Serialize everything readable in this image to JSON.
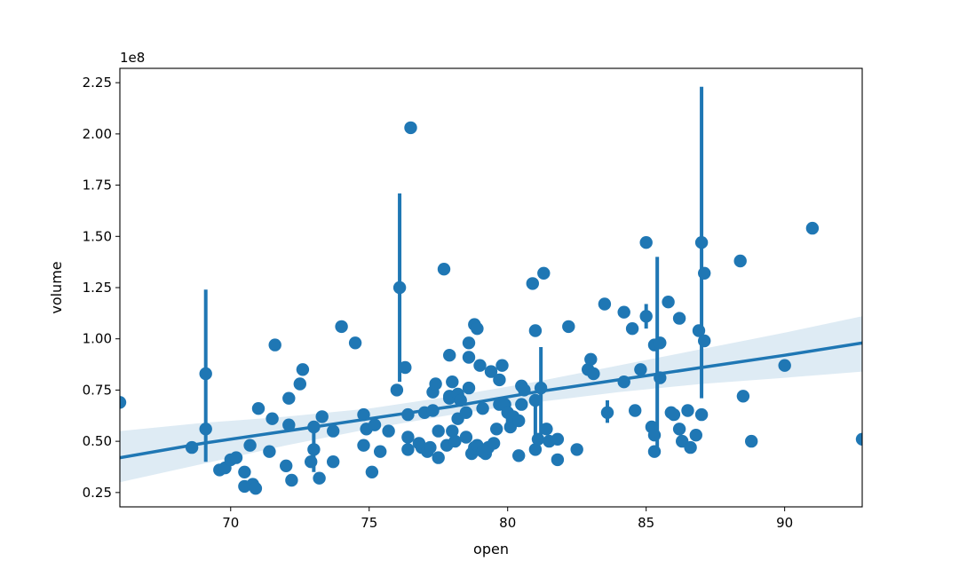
{
  "chart_data": {
    "type": "scatter",
    "title": "",
    "xlabel": "open",
    "ylabel": "volume",
    "y_offset_text": "1e8",
    "xlim": [
      66.0,
      92.8
    ],
    "ylim": [
      0.18,
      2.32
    ],
    "x_ticks": [
      70,
      75,
      80,
      85,
      90
    ],
    "y_ticks": [
      0.25,
      0.5,
      0.75,
      1.0,
      1.25,
      1.5,
      1.75,
      2.0,
      2.25
    ],
    "x_tick_labels": [
      "70",
      "75",
      "80",
      "85",
      "90"
    ],
    "y_tick_labels": [
      "0.25",
      "0.50",
      "0.75",
      "1.00",
      "1.25",
      "1.50",
      "1.75",
      "2.00",
      "2.25"
    ],
    "grid": false,
    "colors": {
      "points": "#1f77b4",
      "line": "#1f77b4",
      "band": "#1f77b4"
    },
    "points": [
      [
        66.0,
        0.69
      ],
      [
        68.6,
        0.47
      ],
      [
        69.1,
        0.56
      ],
      [
        69.1,
        0.83
      ],
      [
        69.6,
        0.36
      ],
      [
        69.8,
        0.37
      ],
      [
        70.0,
        0.41
      ],
      [
        70.2,
        0.42
      ],
      [
        70.5,
        0.35
      ],
      [
        70.5,
        0.28
      ],
      [
        70.7,
        0.48
      ],
      [
        70.8,
        0.29
      ],
      [
        70.9,
        0.27
      ],
      [
        71.0,
        0.66
      ],
      [
        71.4,
        0.45
      ],
      [
        71.5,
        0.61
      ],
      [
        71.6,
        0.97
      ],
      [
        72.0,
        0.38
      ],
      [
        72.1,
        0.58
      ],
      [
        72.1,
        0.71
      ],
      [
        72.2,
        0.31
      ],
      [
        72.5,
        0.78
      ],
      [
        72.6,
        0.85
      ],
      [
        72.9,
        0.4
      ],
      [
        73.0,
        0.46
      ],
      [
        73.0,
        0.57
      ],
      [
        73.2,
        0.32
      ],
      [
        73.3,
        0.62
      ],
      [
        73.7,
        0.55
      ],
      [
        73.7,
        0.4
      ],
      [
        74.0,
        1.06
      ],
      [
        74.5,
        0.98
      ],
      [
        74.8,
        0.63
      ],
      [
        74.8,
        0.48
      ],
      [
        74.9,
        0.56
      ],
      [
        75.1,
        0.35
      ],
      [
        75.2,
        0.58
      ],
      [
        75.4,
        0.45
      ],
      [
        75.7,
        0.55
      ],
      [
        76.0,
        0.75
      ],
      [
        76.1,
        1.25
      ],
      [
        76.3,
        0.86
      ],
      [
        76.4,
        0.52
      ],
      [
        76.4,
        0.46
      ],
      [
        76.4,
        0.63
      ],
      [
        76.5,
        2.03
      ],
      [
        76.8,
        0.49
      ],
      [
        76.9,
        0.47
      ],
      [
        77.0,
        0.64
      ],
      [
        77.1,
        0.45
      ],
      [
        77.2,
        0.47
      ],
      [
        77.3,
        0.74
      ],
      [
        77.3,
        0.65
      ],
      [
        77.4,
        0.78
      ],
      [
        77.5,
        0.42
      ],
      [
        77.5,
        0.55
      ],
      [
        77.7,
        1.34
      ],
      [
        77.8,
        0.48
      ],
      [
        77.9,
        0.92
      ],
      [
        77.9,
        0.71
      ],
      [
        77.9,
        0.72
      ],
      [
        78.0,
        0.79
      ],
      [
        78.0,
        0.55
      ],
      [
        78.1,
        0.5
      ],
      [
        78.2,
        0.61
      ],
      [
        78.2,
        0.73
      ],
      [
        78.3,
        0.7
      ],
      [
        78.5,
        0.64
      ],
      [
        78.5,
        0.52
      ],
      [
        78.6,
        0.91
      ],
      [
        78.6,
        0.98
      ],
      [
        78.6,
        0.76
      ],
      [
        78.7,
        0.44
      ],
      [
        78.8,
        1.07
      ],
      [
        78.8,
        0.47
      ],
      [
        78.9,
        1.05
      ],
      [
        78.9,
        0.48
      ],
      [
        79.0,
        0.87
      ],
      [
        79.1,
        0.66
      ],
      [
        79.1,
        0.45
      ],
      [
        79.2,
        0.44
      ],
      [
        79.3,
        0.47
      ],
      [
        79.4,
        0.84
      ],
      [
        79.5,
        0.49
      ],
      [
        79.6,
        0.56
      ],
      [
        79.7,
        0.8
      ],
      [
        79.7,
        0.68
      ],
      [
        79.8,
        0.87
      ],
      [
        79.9,
        0.68
      ],
      [
        80.0,
        0.64
      ],
      [
        80.1,
        0.57
      ],
      [
        80.2,
        0.62
      ],
      [
        80.4,
        0.6
      ],
      [
        80.4,
        0.43
      ],
      [
        80.5,
        0.77
      ],
      [
        80.5,
        0.68
      ],
      [
        80.6,
        0.75
      ],
      [
        80.9,
        1.27
      ],
      [
        81.0,
        1.04
      ],
      [
        81.0,
        0.46
      ],
      [
        81.0,
        0.7
      ],
      [
        81.1,
        0.51
      ],
      [
        81.2,
        0.76
      ],
      [
        81.3,
        1.32
      ],
      [
        81.4,
        0.56
      ],
      [
        81.5,
        0.5
      ],
      [
        81.8,
        0.51
      ],
      [
        81.8,
        0.41
      ],
      [
        82.2,
        1.06
      ],
      [
        82.5,
        0.46
      ],
      [
        82.9,
        0.85
      ],
      [
        83.0,
        0.9
      ],
      [
        83.1,
        0.83
      ],
      [
        83.5,
        1.17
      ],
      [
        83.6,
        0.64
      ],
      [
        84.2,
        0.79
      ],
      [
        84.2,
        1.13
      ],
      [
        84.5,
        1.05
      ],
      [
        84.6,
        0.65
      ],
      [
        84.8,
        0.85
      ],
      [
        85.0,
        1.47
      ],
      [
        85.0,
        1.11
      ],
      [
        85.2,
        0.57
      ],
      [
        85.3,
        0.45
      ],
      [
        85.3,
        0.53
      ],
      [
        85.3,
        0.97
      ],
      [
        85.5,
        0.98
      ],
      [
        85.5,
        0.81
      ],
      [
        85.8,
        1.18
      ],
      [
        85.9,
        0.64
      ],
      [
        86.0,
        0.63
      ],
      [
        86.2,
        1.1
      ],
      [
        86.2,
        0.56
      ],
      [
        86.3,
        0.5
      ],
      [
        86.5,
        0.65
      ],
      [
        86.6,
        0.47
      ],
      [
        86.8,
        0.53
      ],
      [
        86.9,
        1.04
      ],
      [
        87.0,
        1.47
      ],
      [
        87.0,
        0.63
      ],
      [
        87.1,
        0.99
      ],
      [
        87.1,
        1.32
      ],
      [
        88.4,
        1.38
      ],
      [
        88.5,
        0.72
      ],
      [
        88.8,
        0.5
      ],
      [
        90.0,
        0.87
      ],
      [
        91.0,
        1.54
      ],
      [
        92.8,
        0.51
      ]
    ],
    "error_bars": [
      {
        "x": 69.1,
        "low": 0.4,
        "high": 1.24
      },
      {
        "x": 73.0,
        "low": 0.35,
        "high": 0.58
      },
      {
        "x": 76.1,
        "low": 0.79,
        "high": 1.71
      },
      {
        "x": 80.0,
        "low": 0.56,
        "high": 0.69
      },
      {
        "x": 81.0,
        "low": 0.45,
        "high": 0.73
      },
      {
        "x": 81.2,
        "low": 0.5,
        "high": 0.96
      },
      {
        "x": 83.6,
        "low": 0.59,
        "high": 0.7
      },
      {
        "x": 85.0,
        "low": 1.05,
        "high": 1.17
      },
      {
        "x": 85.4,
        "low": 0.46,
        "high": 1.4
      },
      {
        "x": 87.0,
        "low": 0.71,
        "high": 2.23
      }
    ],
    "regression": {
      "x": [
        66.0,
        69.0,
        72.0,
        75.0,
        78.0,
        81.0,
        84.0,
        87.0,
        90.0,
        92.8
      ],
      "y": [
        0.42,
        0.49,
        0.55,
        0.61,
        0.67,
        0.74,
        0.8,
        0.86,
        0.92,
        0.98
      ],
      "ci_low": [
        0.3,
        0.39,
        0.48,
        0.56,
        0.63,
        0.69,
        0.74,
        0.78,
        0.81,
        0.84
      ],
      "ci_high": [
        0.55,
        0.59,
        0.62,
        0.66,
        0.72,
        0.79,
        0.87,
        0.95,
        1.03,
        1.11
      ]
    }
  }
}
